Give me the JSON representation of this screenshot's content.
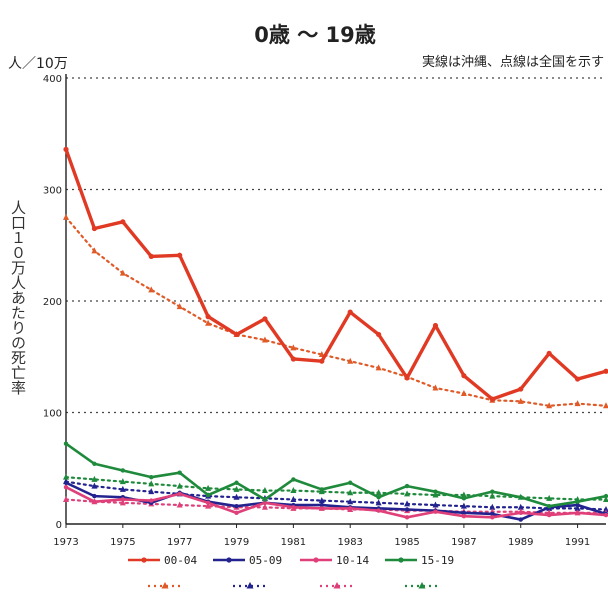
{
  "chart_data": {
    "type": "line",
    "title": "0歳 ～ 19歳",
    "note": "実線は沖縄、点線は全国を示す",
    "ylabel_unit": "人／10万",
    "ylabel": "人口１０万人あたりの死亡率",
    "ylim": [
      0,
      400
    ],
    "yticks": [
      0,
      100,
      200,
      300,
      400
    ],
    "xlim": [
      1973,
      1992
    ],
    "xticks": [
      1973,
      1975,
      1977,
      1979,
      1981,
      1983,
      1985,
      1987,
      1989,
      1991
    ],
    "grid": true,
    "legend_position": "bottom",
    "x": [
      1973,
      1974,
      1975,
      1976,
      1977,
      1978,
      1979,
      1980,
      1981,
      1982,
      1983,
      1984,
      1985,
      1986,
      1987,
      1988,
      1989,
      1990,
      1991,
      1992
    ],
    "series": [
      {
        "name": "00-04",
        "style": "solid",
        "color": "#e03a24",
        "values": [
          336,
          265,
          271,
          240,
          241,
          186,
          170,
          184,
          148,
          146,
          190,
          170,
          131,
          178,
          133,
          112,
          121,
          153,
          130,
          137
        ]
      },
      {
        "name": "05-09",
        "style": "solid",
        "color": "#23238f",
        "values": [
          37,
          25,
          24,
          19,
          28,
          20,
          16,
          19,
          17,
          17,
          15,
          14,
          13,
          12,
          10,
          9,
          4,
          15,
          17,
          9
        ]
      },
      {
        "name": "10-14",
        "style": "solid",
        "color": "#e0407a",
        "values": [
          33,
          20,
          22,
          21,
          27,
          19,
          10,
          19,
          15,
          14,
          14,
          12,
          6,
          11,
          7,
          6,
          10,
          8,
          10,
          8
        ]
      },
      {
        "name": "15-19",
        "style": "solid",
        "color": "#1f8a3c",
        "values": [
          72,
          54,
          48,
          42,
          46,
          26,
          37,
          22,
          40,
          31,
          37,
          24,
          34,
          29,
          23,
          29,
          24,
          16,
          20,
          25
        ]
      },
      {
        "name": "",
        "style": "dotted",
        "color": "#e05a28",
        "values": [
          275,
          245,
          225,
          210,
          195,
          180,
          170,
          165,
          158,
          152,
          146,
          140,
          132,
          122,
          117,
          111,
          110,
          106,
          108,
          106
        ]
      },
      {
        "name": "",
        "style": "dotted",
        "color": "#23238f",
        "values": [
          38,
          34,
          31,
          29,
          27,
          25,
          24,
          23,
          22,
          21,
          20,
          19,
          18,
          17,
          16,
          15,
          15,
          14,
          14,
          13
        ]
      },
      {
        "name": "",
        "style": "dotted",
        "color": "#e0407a",
        "values": [
          22,
          20,
          19,
          18,
          17,
          16,
          15,
          15,
          14,
          14,
          13,
          13,
          12,
          12,
          11,
          11,
          11,
          10,
          10,
          10
        ]
      },
      {
        "name": "",
        "style": "dotted",
        "color": "#1f8a3c",
        "values": [
          42,
          40,
          38,
          36,
          34,
          32,
          31,
          30,
          30,
          29,
          28,
          28,
          27,
          26,
          26,
          25,
          24,
          23,
          22,
          22
        ]
      }
    ]
  }
}
